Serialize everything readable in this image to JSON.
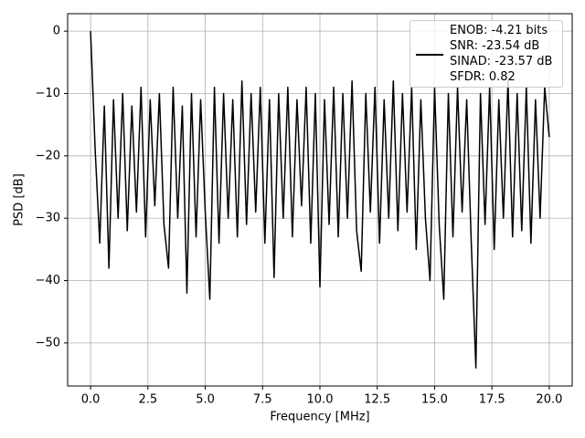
{
  "chart_data": {
    "type": "line",
    "xlabel": "Frequency [MHz]",
    "ylabel": "PSD [dB]",
    "x": [
      0,
      0.2,
      0.4,
      0.6,
      0.8,
      1.0,
      1.2,
      1.4,
      1.6,
      1.8,
      2.0,
      2.2,
      2.4,
      2.6,
      2.8,
      3.0,
      3.2,
      3.4,
      3.6,
      3.8,
      4.0,
      4.2,
      4.4,
      4.6,
      4.8,
      5.0,
      5.2,
      5.4,
      5.6,
      5.8,
      6.0,
      6.2,
      6.4,
      6.6,
      6.8,
      7.0,
      7.2,
      7.4,
      7.6,
      7.8,
      8.0,
      8.2,
      8.4,
      8.6,
      8.8,
      9.0,
      9.2,
      9.4,
      9.6,
      9.8,
      10.0,
      10.2,
      10.4,
      10.6,
      10.8,
      11.0,
      11.2,
      11.4,
      11.6,
      11.8,
      12.0,
      12.2,
      12.4,
      12.6,
      12.8,
      13.0,
      13.2,
      13.4,
      13.6,
      13.8,
      14.0,
      14.2,
      14.4,
      14.6,
      14.8,
      15.0,
      15.2,
      15.4,
      15.6,
      15.8,
      16.0,
      16.2,
      16.4,
      16.6,
      16.8,
      17.0,
      17.2,
      17.4,
      17.6,
      17.8,
      18.0,
      18.2,
      18.4,
      18.6,
      18.8,
      19.0,
      19.2,
      19.4,
      19.6,
      19.8,
      20.0
    ],
    "series": [
      {
        "name": "ENOB: -4.21 bits\nSNR: -23.54 dB\nSINAD: -23.57 dB\nSFDR: 0.82",
        "color": "#000000",
        "values": [
          0,
          -19,
          -34,
          -12,
          -38,
          -11,
          -30,
          -10,
          -32,
          -12,
          -29,
          -9,
          -33,
          -11,
          -28,
          -10,
          -31,
          -38,
          -9,
          -30,
          -12,
          -42,
          -10,
          -33,
          -11,
          -29,
          -43,
          -9,
          -34,
          -10,
          -30,
          -11,
          -33,
          -8,
          -31,
          -10,
          -29,
          -9,
          -34,
          -11,
          -39.5,
          -10,
          -30,
          -9,
          -33,
          -11,
          -28,
          -9,
          -34,
          -10,
          -41,
          -11,
          -31,
          -9,
          -33,
          -10,
          -30,
          -8,
          -32,
          -38.5,
          -10,
          -29,
          -9,
          -34,
          -11,
          -30,
          -8,
          -32,
          -10,
          -29,
          -9,
          -35,
          -11,
          -30,
          -40,
          -9,
          -31,
          -43,
          -10,
          -33,
          -9,
          -29,
          -11,
          -34,
          -54,
          -10,
          -31,
          -9,
          -35,
          -11,
          -30,
          -8,
          -33,
          -10,
          -32,
          -9,
          -34,
          -11,
          -30,
          -9,
          -17
        ]
      }
    ],
    "xlim": [
      -1.0,
      21.0
    ],
    "xticks": [
      {
        "value": 0,
        "label": "0.0"
      },
      2.5,
      {
        "value": 5,
        "label": "5.0"
      },
      7.5,
      {
        "value": 10,
        "label": "10.0"
      },
      12.5,
      {
        "value": 15,
        "label": "15.0"
      },
      17.5,
      {
        "value": 20,
        "label": "20.0"
      }
    ],
    "ylim": [
      -56.9,
      2.8
    ],
    "yticks": [
      0,
      {
        "value": -10,
        "label": "−10"
      },
      {
        "value": -20,
        "label": "−20"
      },
      {
        "value": -30,
        "label": "−30"
      },
      {
        "value": -40,
        "label": "−40"
      },
      {
        "value": -50,
        "label": "−50"
      }
    ],
    "grid": true,
    "legend": "upper right"
  }
}
